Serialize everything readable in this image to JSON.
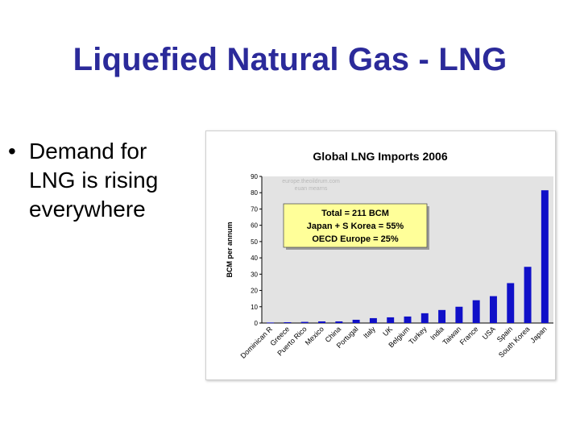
{
  "slide": {
    "title": "Liquefied Natural Gas - LNG",
    "bullet": "Demand for LNG is rising everywhere"
  },
  "chart_data": {
    "type": "bar",
    "title": "Global LNG Imports 2006",
    "xlabel": "",
    "ylabel": "BCM per annum",
    "ylim": [
      0,
      90
    ],
    "yticks": [
      0,
      10,
      20,
      30,
      40,
      50,
      60,
      70,
      80,
      90
    ],
    "grid": false,
    "watermark": [
      "europe.theoildrum.com",
      "euan mearns"
    ],
    "annotation": [
      "Total = 211 BCM",
      "Japan + S Korea = 55%",
      "OECD Europe = 25%"
    ],
    "categories": [
      "Dominican R",
      "Greece",
      "Puerto Rico",
      "Mexico",
      "China",
      "Portugal",
      "Italy",
      "UK",
      "Belgium",
      "Turkey",
      "India",
      "Taiwan",
      "France",
      "USA",
      "Spain",
      "South Korea",
      "Japan"
    ],
    "values": [
      0.3,
      0.5,
      0.7,
      1.0,
      1.0,
      2.0,
      3.0,
      3.5,
      4.0,
      6.0,
      8.0,
      10.0,
      14.0,
      16.5,
      24.5,
      34.5,
      81.5
    ],
    "colors": {
      "bar": "#1010c8",
      "plot_background": "#e3e3e3",
      "annotation_background": "#ffff99",
      "title_color": "#2b2a9a"
    }
  }
}
